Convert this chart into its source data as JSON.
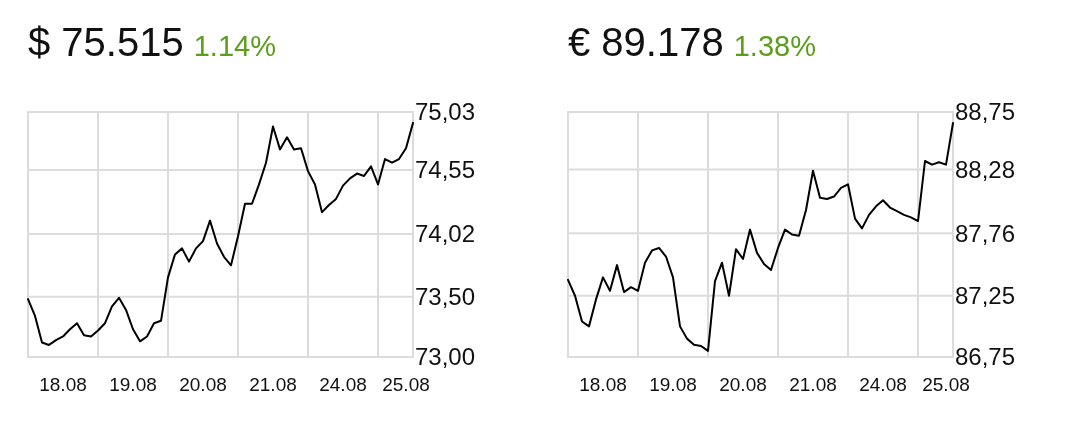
{
  "chart_data": [
    {
      "type": "line",
      "title": "$ 75.515",
      "subtitle": "1.14%",
      "ylim": [
        73.0,
        75.03
      ],
      "grid": true,
      "marker": "none",
      "line_style": "solid",
      "categories": [
        null,
        null,
        null,
        null,
        null,
        "18.08",
        null,
        null,
        null,
        null,
        null,
        null,
        null,
        null,
        null,
        "19.08",
        null,
        null,
        null,
        null,
        null,
        null,
        null,
        null,
        null,
        "20.08",
        null,
        null,
        null,
        null,
        null,
        null,
        null,
        null,
        null,
        "21.08",
        null,
        null,
        null,
        null,
        null,
        null,
        null,
        null,
        null,
        "24.08",
        null,
        null,
        null,
        null,
        null,
        null,
        null,
        null,
        "25.08",
        null
      ],
      "yticks": [
        {
          "value": 73.0,
          "label": "73,00"
        },
        {
          "value": 73.5,
          "label": "73,50"
        },
        {
          "value": 74.02,
          "label": "74,02"
        },
        {
          "value": 74.55,
          "label": "74,55"
        },
        {
          "value": 75.03,
          "label": "75,03"
        }
      ],
      "series": [
        {
          "color": "#000000",
          "values": [
            73.48,
            73.34,
            73.12,
            73.1,
            73.14,
            73.17,
            73.23,
            73.28,
            73.18,
            73.17,
            73.22,
            73.28,
            73.42,
            73.49,
            73.39,
            73.23,
            73.13,
            73.17,
            73.28,
            73.3,
            73.66,
            73.85,
            73.9,
            73.79,
            73.9,
            73.96,
            74.13,
            73.94,
            73.83,
            73.76,
            74.0,
            74.27,
            74.27,
            74.43,
            74.61,
            74.91,
            74.72,
            74.82,
            74.72,
            74.73,
            74.54,
            74.43,
            74.2,
            74.26,
            74.31,
            74.42,
            74.48,
            74.52,
            74.5,
            74.58,
            74.43,
            74.64,
            74.61,
            74.64,
            74.73,
            74.94
          ]
        }
      ]
    },
    {
      "type": "line",
      "title": "€ 89.178",
      "subtitle": "1.38%",
      "ylim": [
        86.75,
        88.75
      ],
      "grid": true,
      "marker": "none",
      "line_style": "solid",
      "categories": [
        null,
        null,
        null,
        null,
        null,
        "18.08",
        null,
        null,
        null,
        null,
        null,
        null,
        null,
        null,
        null,
        "19.08",
        null,
        null,
        null,
        null,
        null,
        null,
        null,
        null,
        null,
        "20.08",
        null,
        null,
        null,
        null,
        null,
        null,
        null,
        null,
        null,
        "21.08",
        null,
        null,
        null,
        null,
        null,
        null,
        null,
        null,
        null,
        "24.08",
        null,
        null,
        null,
        null,
        null,
        null,
        null,
        null,
        "25.08",
        null
      ],
      "yticks": [
        {
          "value": 86.75,
          "label": "86,75"
        },
        {
          "value": 87.25,
          "label": "87,25"
        },
        {
          "value": 87.76,
          "label": "87,76"
        },
        {
          "value": 88.28,
          "label": "88,28"
        },
        {
          "value": 88.75,
          "label": "88,75"
        }
      ],
      "series": [
        {
          "color": "#000000",
          "values": [
            87.38,
            87.25,
            87.04,
            87.0,
            87.22,
            87.4,
            87.29,
            87.5,
            87.28,
            87.32,
            87.29,
            87.52,
            87.62,
            87.64,
            87.57,
            87.4,
            87.0,
            86.9,
            86.85,
            86.84,
            86.8,
            87.37,
            87.52,
            87.25,
            87.63,
            87.55,
            87.79,
            87.6,
            87.51,
            87.46,
            87.64,
            87.79,
            87.75,
            87.74,
            87.95,
            88.27,
            88.05,
            88.04,
            88.06,
            88.13,
            88.16,
            87.88,
            87.8,
            87.91,
            87.98,
            88.03,
            87.97,
            87.94,
            87.91,
            87.89,
            87.86,
            88.35,
            88.32,
            88.34,
            88.32,
            88.66
          ]
        }
      ]
    }
  ]
}
